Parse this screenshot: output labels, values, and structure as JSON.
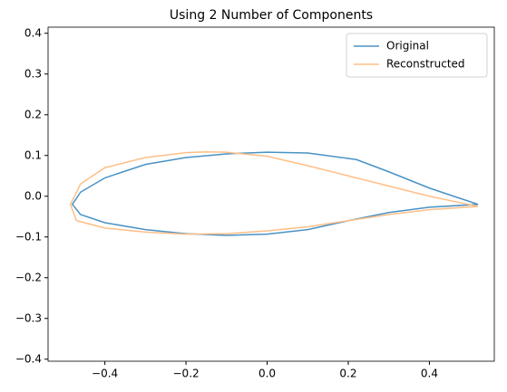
{
  "chart_data": {
    "type": "line",
    "title": "Using 2 Number of Components",
    "series": [
      {
        "name": "Original",
        "color": "#4a92c4",
        "x": [
          0.52,
          0.4,
          0.3,
          0.22,
          0.1,
          0.0,
          -0.1,
          -0.2,
          -0.3,
          -0.4,
          -0.46,
          -0.48,
          -0.46,
          -0.4,
          -0.3,
          -0.2,
          -0.1,
          0.0,
          0.1,
          0.2,
          0.3,
          0.4,
          0.52
        ],
        "values": [
          -0.02,
          0.02,
          0.06,
          0.09,
          0.106,
          0.108,
          0.104,
          0.095,
          0.078,
          0.045,
          0.01,
          -0.02,
          -0.045,
          -0.065,
          -0.082,
          -0.092,
          -0.096,
          -0.093,
          -0.082,
          -0.06,
          -0.04,
          -0.027,
          -0.02
        ]
      },
      {
        "name": "Reconstructed",
        "color": "#ffbf86",
        "x": [
          0.52,
          0.4,
          0.3,
          0.2,
          0.1,
          0.0,
          -0.1,
          -0.15,
          -0.2,
          -0.3,
          -0.4,
          -0.46,
          -0.485,
          -0.47,
          -0.4,
          -0.3,
          -0.2,
          -0.1,
          0.0,
          0.1,
          0.2,
          0.3,
          0.4,
          0.52
        ],
        "values": [
          -0.025,
          0.0,
          0.025,
          0.05,
          0.075,
          0.098,
          0.108,
          0.109,
          0.107,
          0.095,
          0.07,
          0.03,
          -0.02,
          -0.06,
          -0.078,
          -0.088,
          -0.093,
          -0.092,
          -0.085,
          -0.075,
          -0.06,
          -0.045,
          -0.033,
          -0.025
        ]
      }
    ],
    "xlim": [
      -0.54,
      0.56
    ],
    "ylim": [
      -0.405,
      0.415
    ],
    "xticks": [
      {
        "value": -0.4,
        "label": "−0.4"
      },
      {
        "value": -0.2,
        "label": "−0.2"
      },
      {
        "value": 0,
        "label": "0.0"
      },
      0.2,
      0.4
    ],
    "yticks": [
      {
        "value": -0.4,
        "label": "−0.4"
      },
      {
        "value": -0.3,
        "label": "−0.3"
      },
      {
        "value": -0.2,
        "label": "−0.2"
      },
      {
        "value": -0.1,
        "label": "−0.1"
      },
      {
        "value": 0,
        "label": "0.0"
      },
      0.1,
      0.2,
      0.3,
      0.4
    ],
    "legend": "upper right"
  }
}
